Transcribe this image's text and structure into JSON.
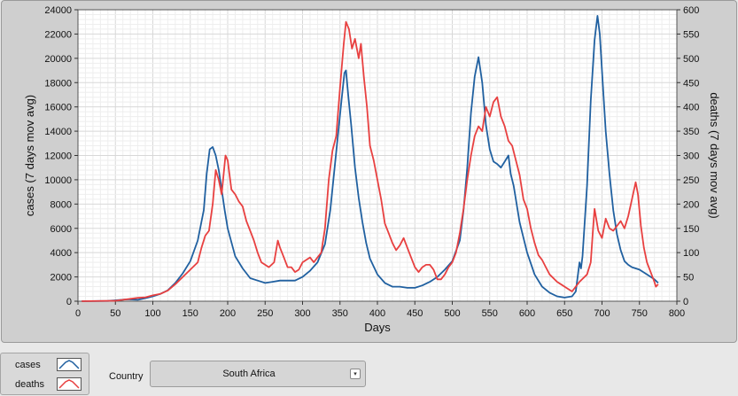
{
  "chart_data": {
    "type": "line",
    "xlabel": "Days",
    "ylabel_left": "cases  (7 days mov avg)",
    "ylabel_right": "deaths  (7 days mov avg)",
    "xlim": [
      0,
      800
    ],
    "ylim_left": [
      0,
      24000
    ],
    "ylim_right": [
      0,
      600
    ],
    "x_ticks": [
      "0",
      "50",
      "100",
      "150",
      "200",
      "250",
      "300",
      "350",
      "400",
      "450",
      "500",
      "550",
      "600",
      "650",
      "700",
      "750",
      "800"
    ],
    "y_ticks_left": [
      "0",
      "2000",
      "4000",
      "6000",
      "8000",
      "10000",
      "12000",
      "14000",
      "16000",
      "18000",
      "20000",
      "22000",
      "24000"
    ],
    "y_ticks_right": [
      "0",
      "50",
      "100",
      "150",
      "200",
      "250",
      "300",
      "350",
      "400",
      "450",
      "500",
      "550",
      "600"
    ],
    "grid": true,
    "series": [
      {
        "name": "cases",
        "axis": "left",
        "color": "#2060a0",
        "points": [
          [
            5,
            0
          ],
          [
            40,
            20
          ],
          [
            55,
            100
          ],
          [
            65,
            150
          ],
          [
            80,
            120
          ],
          [
            90,
            250
          ],
          [
            100,
            400
          ],
          [
            110,
            600
          ],
          [
            120,
            900
          ],
          [
            130,
            1500
          ],
          [
            140,
            2300
          ],
          [
            150,
            3300
          ],
          [
            160,
            5000
          ],
          [
            168,
            7500
          ],
          [
            172,
            10500
          ],
          [
            176,
            12500
          ],
          [
            180,
            12700
          ],
          [
            184,
            12000
          ],
          [
            188,
            10800
          ],
          [
            192,
            9200
          ],
          [
            196,
            7500
          ],
          [
            200,
            6000
          ],
          [
            210,
            3700
          ],
          [
            220,
            2700
          ],
          [
            230,
            1900
          ],
          [
            240,
            1700
          ],
          [
            250,
            1500
          ],
          [
            260,
            1600
          ],
          [
            270,
            1700
          ],
          [
            280,
            1700
          ],
          [
            290,
            1700
          ],
          [
            300,
            2000
          ],
          [
            310,
            2500
          ],
          [
            320,
            3200
          ],
          [
            330,
            4700
          ],
          [
            337,
            7500
          ],
          [
            342,
            10500
          ],
          [
            347,
            13500
          ],
          [
            352,
            16500
          ],
          [
            356,
            18800
          ],
          [
            358,
            19000
          ],
          [
            361,
            17000
          ],
          [
            365,
            14500
          ],
          [
            370,
            11000
          ],
          [
            375,
            8500
          ],
          [
            380,
            6500
          ],
          [
            385,
            4800
          ],
          [
            390,
            3500
          ],
          [
            400,
            2200
          ],
          [
            410,
            1500
          ],
          [
            420,
            1200
          ],
          [
            430,
            1200
          ],
          [
            440,
            1100
          ],
          [
            450,
            1100
          ],
          [
            460,
            1300
          ],
          [
            470,
            1600
          ],
          [
            480,
            2000
          ],
          [
            490,
            2600
          ],
          [
            500,
            3300
          ],
          [
            510,
            5000
          ],
          [
            515,
            7500
          ],
          [
            520,
            11000
          ],
          [
            525,
            15500
          ],
          [
            530,
            18500
          ],
          [
            535,
            20100
          ],
          [
            540,
            18000
          ],
          [
            545,
            14500
          ],
          [
            550,
            12500
          ],
          [
            555,
            11500
          ],
          [
            560,
            11300
          ],
          [
            565,
            11000
          ],
          [
            570,
            11500
          ],
          [
            575,
            12000
          ],
          [
            578,
            10500
          ],
          [
            582,
            9500
          ],
          [
            590,
            6500
          ],
          [
            600,
            4000
          ],
          [
            610,
            2200
          ],
          [
            620,
            1200
          ],
          [
            630,
            700
          ],
          [
            640,
            400
          ],
          [
            650,
            300
          ],
          [
            660,
            400
          ],
          [
            665,
            800
          ],
          [
            670,
            3200
          ],
          [
            672,
            2700
          ],
          [
            674,
            3700
          ],
          [
            680,
            9500
          ],
          [
            685,
            16500
          ],
          [
            690,
            21500
          ],
          [
            694,
            23500
          ],
          [
            697,
            22000
          ],
          [
            701,
            18000
          ],
          [
            705,
            14000
          ],
          [
            710,
            10500
          ],
          [
            715,
            7500
          ],
          [
            720,
            5500
          ],
          [
            725,
            4200
          ],
          [
            730,
            3300
          ],
          [
            735,
            3000
          ],
          [
            740,
            2800
          ],
          [
            750,
            2600
          ],
          [
            760,
            2200
          ],
          [
            770,
            1800
          ],
          [
            775,
            1500
          ]
        ]
      },
      {
        "name": "deaths",
        "axis": "right",
        "color": "#e84040",
        "points": [
          [
            5,
            0
          ],
          [
            50,
            1
          ],
          [
            60,
            3
          ],
          [
            70,
            5
          ],
          [
            80,
            7
          ],
          [
            90,
            8
          ],
          [
            100,
            12
          ],
          [
            110,
            15
          ],
          [
            120,
            22
          ],
          [
            130,
            35
          ],
          [
            140,
            50
          ],
          [
            150,
            65
          ],
          [
            160,
            80
          ],
          [
            165,
            110
          ],
          [
            170,
            135
          ],
          [
            175,
            145
          ],
          [
            180,
            200
          ],
          [
            184,
            270
          ],
          [
            188,
            250
          ],
          [
            192,
            220
          ],
          [
            197,
            300
          ],
          [
            200,
            290
          ],
          [
            205,
            230
          ],
          [
            210,
            220
          ],
          [
            215,
            205
          ],
          [
            220,
            195
          ],
          [
            225,
            165
          ],
          [
            230,
            145
          ],
          [
            235,
            125
          ],
          [
            240,
            100
          ],
          [
            245,
            80
          ],
          [
            250,
            75
          ],
          [
            255,
            70
          ],
          [
            262,
            80
          ],
          [
            267,
            125
          ],
          [
            270,
            110
          ],
          [
            275,
            90
          ],
          [
            280,
            70
          ],
          [
            285,
            70
          ],
          [
            290,
            60
          ],
          [
            295,
            65
          ],
          [
            300,
            80
          ],
          [
            305,
            85
          ],
          [
            310,
            90
          ],
          [
            315,
            80
          ],
          [
            320,
            90
          ],
          [
            325,
            100
          ],
          [
            330,
            150
          ],
          [
            335,
            250
          ],
          [
            340,
            310
          ],
          [
            345,
            340
          ],
          [
            350,
            440
          ],
          [
            355,
            530
          ],
          [
            358,
            575
          ],
          [
            362,
            560
          ],
          [
            366,
            520
          ],
          [
            370,
            540
          ],
          [
            375,
            500
          ],
          [
            378,
            530
          ],
          [
            382,
            460
          ],
          [
            386,
            400
          ],
          [
            390,
            320
          ],
          [
            395,
            290
          ],
          [
            400,
            250
          ],
          [
            405,
            210
          ],
          [
            410,
            160
          ],
          [
            415,
            140
          ],
          [
            420,
            120
          ],
          [
            425,
            105
          ],
          [
            430,
            115
          ],
          [
            435,
            130
          ],
          [
            440,
            110
          ],
          [
            445,
            90
          ],
          [
            450,
            70
          ],
          [
            455,
            60
          ],
          [
            460,
            70
          ],
          [
            465,
            75
          ],
          [
            470,
            75
          ],
          [
            475,
            65
          ],
          [
            480,
            45
          ],
          [
            485,
            45
          ],
          [
            490,
            55
          ],
          [
            495,
            70
          ],
          [
            500,
            80
          ],
          [
            505,
            100
          ],
          [
            510,
            140
          ],
          [
            515,
            190
          ],
          [
            520,
            250
          ],
          [
            525,
            300
          ],
          [
            530,
            340
          ],
          [
            535,
            360
          ],
          [
            540,
            350
          ],
          [
            545,
            400
          ],
          [
            550,
            380
          ],
          [
            555,
            410
          ],
          [
            560,
            420
          ],
          [
            565,
            380
          ],
          [
            570,
            360
          ],
          [
            575,
            330
          ],
          [
            580,
            320
          ],
          [
            585,
            290
          ],
          [
            590,
            260
          ],
          [
            595,
            210
          ],
          [
            600,
            190
          ],
          [
            605,
            150
          ],
          [
            610,
            120
          ],
          [
            615,
            95
          ],
          [
            620,
            85
          ],
          [
            625,
            70
          ],
          [
            630,
            55
          ],
          [
            640,
            40
          ],
          [
            650,
            30
          ],
          [
            660,
            20
          ],
          [
            670,
            40
          ],
          [
            680,
            55
          ],
          [
            685,
            80
          ],
          [
            688,
            150
          ],
          [
            690,
            190
          ],
          [
            695,
            145
          ],
          [
            700,
            130
          ],
          [
            705,
            170
          ],
          [
            710,
            150
          ],
          [
            715,
            145
          ],
          [
            720,
            155
          ],
          [
            725,
            165
          ],
          [
            730,
            150
          ],
          [
            735,
            175
          ],
          [
            740,
            210
          ],
          [
            745,
            245
          ],
          [
            748,
            220
          ],
          [
            752,
            155
          ],
          [
            756,
            110
          ],
          [
            760,
            80
          ],
          [
            765,
            60
          ],
          [
            770,
            40
          ],
          [
            772,
            30
          ],
          [
            775,
            35
          ]
        ]
      }
    ]
  },
  "legend": {
    "items": [
      {
        "label": "cases",
        "color": "#2060a0"
      },
      {
        "label": "deaths",
        "color": "#e84040"
      }
    ]
  },
  "country": {
    "label": "Country",
    "value": "South Africa"
  }
}
